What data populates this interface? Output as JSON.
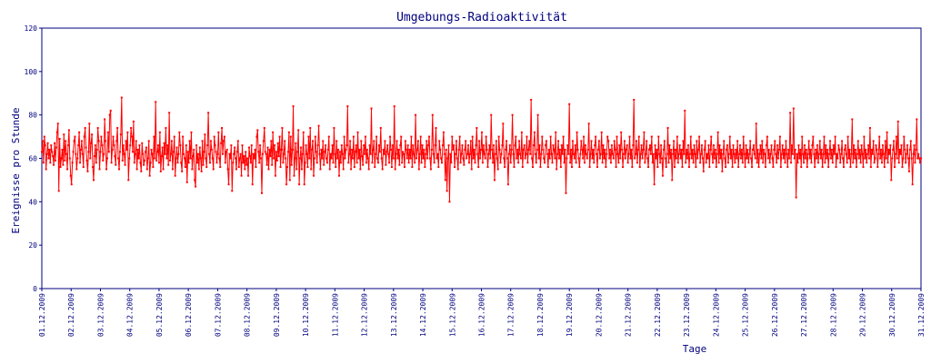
{
  "chart_data": {
    "type": "line",
    "title": "Umgebungs-Radioaktivität",
    "xlabel": "Tage",
    "ylabel": "Ereignisse pro Stunde",
    "ylim": [
      0,
      120
    ],
    "yticks": [
      0,
      20,
      40,
      60,
      80,
      100,
      120
    ],
    "xlim": [
      "01.12.2009",
      "31.12.2009"
    ],
    "xticks": [
      "01.12.2009",
      "02.12.2009",
      "03.12.2009",
      "04.12.2009",
      "05.12.2009",
      "06.12.2009",
      "07.12.2009",
      "08.12.2009",
      "09.12.2009",
      "10.12.2009",
      "11.12.2009",
      "12.12.2009",
      "13.12.2009",
      "14.12.2009",
      "15.12.2009",
      "16.12.2009",
      "17.12.2009",
      "18.12.2009",
      "19.12.2009",
      "20.12.2009",
      "21.12.2009",
      "22.12.2009",
      "23.12.2009",
      "24.12.2009",
      "25.12.2009",
      "26.12.2009",
      "27.12.2009",
      "28.12.2009",
      "29.12.2009",
      "30.12.2009",
      "31.12.2009"
    ],
    "grid": false,
    "series": [
      {
        "color": "#ff0000",
        "points_per_day": 24,
        "values": [
          63,
          68,
          58,
          70,
          66,
          55,
          62,
          67,
          60,
          64,
          58,
          66,
          63,
          61,
          57,
          67,
          59,
          65,
          72,
          76,
          45,
          69,
          56,
          60,
          64,
          57,
          71,
          59,
          68,
          62,
          55,
          66,
          73,
          60,
          52,
          48,
          58,
          63,
          68,
          70,
          62,
          55,
          60,
          66,
          72,
          58,
          64,
          68,
          62,
          56,
          70,
          74,
          65,
          59,
          54,
          63,
          76,
          60,
          67,
          71,
          56,
          50,
          61,
          66,
          58,
          64,
          74,
          68,
          55,
          63,
          70,
          66,
          59,
          62,
          78,
          68,
          55,
          60,
          72,
          63,
          80,
          82,
          58,
          64,
          70,
          66,
          61,
          57,
          68,
          74,
          60,
          55,
          63,
          71,
          88,
          59,
          66,
          62,
          57,
          68,
          64,
          72,
          50,
          60,
          66,
          74,
          70,
          63,
          77,
          58,
          62,
          68,
          55,
          64,
          60,
          66,
          58,
          54,
          67,
          62,
          57,
          59,
          63,
          65,
          55,
          60,
          68,
          52,
          58,
          64,
          62,
          56,
          70,
          60,
          86,
          59,
          63,
          66,
          58,
          72,
          54,
          61,
          65,
          55,
          67,
          62,
          74,
          60,
          66,
          57,
          81,
          59,
          62,
          68,
          55,
          63,
          70,
          52,
          60,
          65,
          58,
          62,
          72,
          66,
          58,
          54,
          70,
          62,
          60,
          56,
          66,
          49,
          63,
          58,
          68,
          60,
          72,
          55,
          61,
          64,
          50,
          47,
          66,
          58,
          62,
          55,
          65,
          60,
          54,
          68,
          57,
          63,
          71,
          60,
          56,
          66,
          81,
          62,
          58,
          68,
          64,
          60,
          55,
          70,
          66,
          63,
          58,
          62,
          72,
          60,
          56,
          67,
          74,
          62,
          68,
          70,
          58,
          63,
          64,
          55,
          48,
          62,
          60,
          66,
          45,
          58,
          62,
          65,
          60,
          55,
          63,
          68,
          56,
          60,
          62,
          52,
          66,
          58,
          61,
          55,
          63,
          57,
          60,
          52,
          65,
          61,
          58,
          66,
          48,
          62,
          60,
          64,
          56,
          70,
          73,
          63,
          58,
          66,
          60,
          44,
          62,
          68,
          74,
          63,
          62,
          57,
          65,
          55,
          64,
          61,
          68,
          57,
          72,
          60,
          66,
          52,
          63,
          59,
          67,
          61,
          70,
          56,
          64,
          74,
          58,
          62,
          68,
          60,
          48,
          56,
          63,
          72,
          50,
          70,
          57,
          64,
          84,
          52,
          60,
          67,
          55,
          63,
          73,
          48,
          60,
          65,
          55,
          62,
          72,
          48,
          58,
          66,
          62,
          56,
          70,
          60,
          74,
          55,
          64,
          68,
          52,
          60,
          70,
          63,
          58,
          66,
          75,
          62,
          55,
          64,
          60,
          68,
          57,
          63,
          66,
          60,
          58,
          64,
          70,
          55,
          62,
          60,
          66,
          58,
          74,
          62,
          56,
          68,
          60,
          64,
          52,
          63,
          58,
          66,
          62,
          55,
          70,
          60,
          64,
          66,
          84,
          58,
          62,
          68,
          55,
          64,
          60,
          70,
          56,
          63,
          66,
          58,
          72,
          60,
          64,
          55,
          68,
          61,
          57,
          66,
          62,
          70,
          58,
          64,
          60,
          55,
          66,
          62,
          83,
          58,
          64,
          68,
          56,
          62,
          70,
          60,
          58,
          66,
          63,
          74,
          60,
          55,
          64,
          62,
          68,
          57,
          63,
          66,
          62,
          58,
          70,
          64,
          56,
          66,
          60,
          84,
          55,
          62,
          68,
          60,
          64,
          57,
          66,
          70,
          58,
          63,
          62,
          56,
          68,
          64,
          60,
          66,
          58,
          64,
          60,
          70,
          56,
          66,
          62,
          58,
          80,
          60,
          64,
          68,
          55,
          62,
          70,
          58,
          66,
          60,
          64,
          56,
          62,
          68,
          60,
          66,
          70,
          60,
          55,
          64,
          80,
          62,
          58,
          66,
          74,
          60,
          62,
          56,
          68,
          64,
          60,
          58,
          66,
          72,
          62,
          50,
          64,
          45,
          60,
          66,
          40,
          62,
          58,
          70,
          64,
          66,
          56,
          62,
          68,
          60,
          55,
          64,
          70,
          58,
          62,
          66,
          60,
          57,
          64,
          68,
          60,
          62,
          66,
          58,
          62,
          68,
          55,
          70,
          60,
          64,
          58,
          66,
          74,
          62,
          56,
          68,
          60,
          64,
          72,
          58,
          66,
          62,
          60,
          70,
          64,
          56,
          62,
          66,
          60,
          80,
          64,
          58,
          66,
          50,
          62,
          68,
          60,
          55,
          70,
          64,
          58,
          62,
          66,
          76,
          60,
          56,
          64,
          68,
          60,
          48,
          62,
          66,
          58,
          64,
          80,
          62,
          56,
          66,
          70,
          60,
          64,
          58,
          68,
          62,
          60,
          72,
          56,
          64,
          66,
          60,
          62,
          70,
          58,
          64,
          68,
          62,
          87,
          60,
          56,
          66,
          72,
          62,
          58,
          64,
          80,
          60,
          66,
          56,
          62,
          70,
          64,
          60,
          58,
          66,
          68,
          62,
          56,
          64,
          60,
          70,
          62,
          58,
          66,
          64,
          60,
          72,
          55,
          62,
          68,
          60,
          64,
          56,
          66,
          62,
          70,
          58,
          64,
          44,
          60,
          66,
          62,
          85,
          58,
          64,
          56,
          68,
          62,
          60,
          66,
          58,
          72,
          64,
          60,
          56,
          62,
          68,
          64,
          60,
          70,
          58,
          66,
          62,
          60,
          64,
          76,
          56,
          62,
          68,
          60,
          64,
          58,
          66,
          70,
          62,
          56,
          64,
          68,
          60,
          62,
          72,
          58,
          66,
          60,
          64,
          56,
          62,
          70,
          68,
          60,
          64,
          58,
          66,
          62,
          60,
          68,
          64,
          56,
          70,
          62,
          58,
          66,
          60,
          72,
          64,
          56,
          62,
          68,
          60,
          64,
          66,
          58,
          62,
          70,
          60,
          64,
          56,
          66,
          87,
          60,
          62,
          68,
          58,
          64,
          70,
          56,
          62,
          66,
          60,
          64,
          72,
          58,
          62,
          68,
          60,
          56,
          64,
          66,
          62,
          70,
          58,
          62,
          48,
          66,
          60,
          64,
          56,
          70,
          62,
          58,
          66,
          60,
          52,
          64,
          68,
          60,
          56,
          62,
          74,
          58,
          66,
          60,
          64,
          50,
          62,
          68,
          56,
          64,
          60,
          70,
          58,
          62,
          66,
          60,
          64,
          56,
          68,
          62,
          82,
          58,
          64,
          60,
          66,
          56,
          62,
          70,
          60,
          64,
          58,
          66,
          62,
          56,
          68,
          60,
          64,
          70,
          58,
          62,
          66,
          60,
          54,
          64,
          68,
          58,
          62,
          60,
          66,
          56,
          64,
          70,
          62,
          58,
          66,
          60,
          64,
          56,
          62,
          72,
          58,
          66,
          60,
          64,
          54,
          62,
          68,
          60,
          56,
          64,
          66,
          58,
          62,
          70,
          60,
          64,
          56,
          66,
          62,
          58,
          64,
          60,
          68,
          56,
          62,
          66,
          60,
          64,
          58,
          70,
          62,
          56,
          66,
          60,
          64,
          58,
          62,
          68,
          60,
          56,
          64,
          66,
          62,
          60,
          76,
          58,
          64,
          56,
          62,
          66,
          60,
          68,
          58,
          64,
          62,
          56,
          66,
          70,
          60,
          64,
          58,
          62,
          66,
          60,
          56,
          64,
          68,
          62,
          58,
          66,
          60,
          64,
          70,
          56,
          62,
          66,
          60,
          64,
          58,
          68,
          62,
          56,
          64,
          60,
          81,
          58,
          66,
          62,
          83,
          60,
          64,
          42,
          62,
          58,
          66,
          60,
          64,
          56,
          70,
          62,
          58,
          66,
          60,
          64,
          56,
          62,
          68,
          60,
          64,
          58,
          66,
          70,
          62,
          56,
          64,
          60,
          66,
          58,
          62,
          68,
          60,
          64,
          56,
          62,
          70,
          58,
          66,
          60,
          64,
          56,
          62,
          68,
          60,
          64,
          58,
          66,
          62,
          70,
          56,
          62,
          60,
          66,
          64,
          58,
          62,
          68,
          60,
          56,
          64,
          66,
          62,
          58,
          70,
          60,
          64,
          56,
          62,
          78,
          58,
          66,
          60,
          64,
          56,
          62,
          68,
          60,
          64,
          58,
          66,
          62,
          56,
          70,
          60,
          64,
          58,
          62,
          66,
          60,
          74,
          56,
          64,
          62,
          68,
          58,
          60,
          66,
          64,
          56,
          62,
          70,
          60,
          64,
          58,
          66,
          62,
          56,
          68,
          60,
          72,
          58,
          64,
          62,
          66,
          50,
          60,
          64,
          68,
          56,
          62,
          70,
          60,
          77,
          58,
          64,
          62,
          66,
          56,
          60,
          70,
          64,
          58,
          62,
          66,
          60,
          54,
          64,
          68,
          60,
          48,
          62,
          66,
          58,
          64,
          78,
          60,
          62,
          60,
          58,
          60
        ]
      }
    ]
  }
}
